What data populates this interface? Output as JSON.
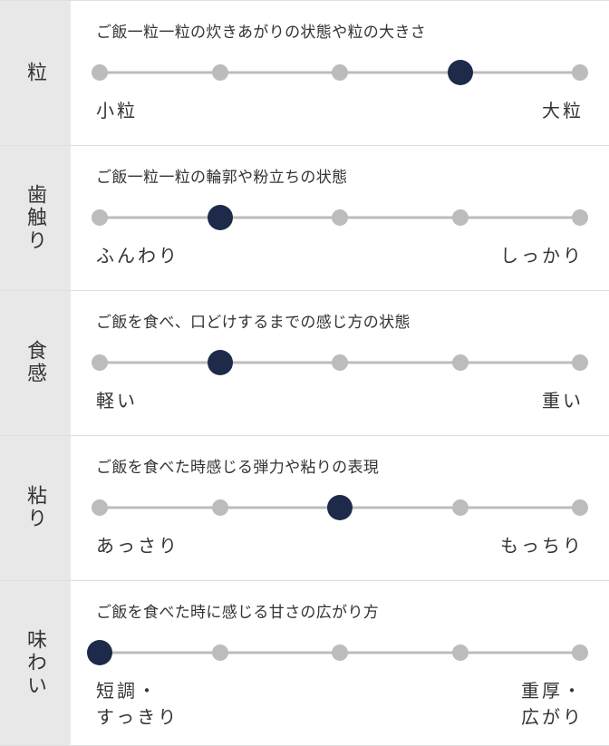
{
  "colors": {
    "selected": "#1e2a4a",
    "dot": "#bcbcbc",
    "track": "#bcbcbc",
    "label_bg": "#e8e8e8",
    "text": "#333333",
    "border": "#e0e0e0"
  },
  "slider": {
    "positions": [
      0,
      25,
      50,
      75,
      100
    ],
    "dot_size": 18,
    "selected_size": 28,
    "track_height": 3
  },
  "rows": [
    {
      "label": "粒",
      "description": "ご飯一粒一粒の炊きあがりの状態や粒の大きさ",
      "selected_index": 3,
      "left": "小粒",
      "right": "大粒"
    },
    {
      "label": "歯触り",
      "description": "ご飯一粒一粒の輪郭や粉立ちの状態",
      "selected_index": 1,
      "left": "ふんわり",
      "right": "しっかり"
    },
    {
      "label": "食感",
      "description": "ご飯を食べ、口どけするまでの感じ方の状態",
      "selected_index": 1,
      "left": "軽い",
      "right": "重い"
    },
    {
      "label": "粘り",
      "description": "ご飯を食べた時感じる弾力や粘りの表現",
      "selected_index": 2,
      "left": "あっさり",
      "right": "もっちり"
    },
    {
      "label": "味わい",
      "description": "ご飯を食べた時に感じる甘さの広がり方",
      "selected_index": 0,
      "left": "短調・\nすっきり",
      "right": "重厚・\n広がり"
    }
  ]
}
